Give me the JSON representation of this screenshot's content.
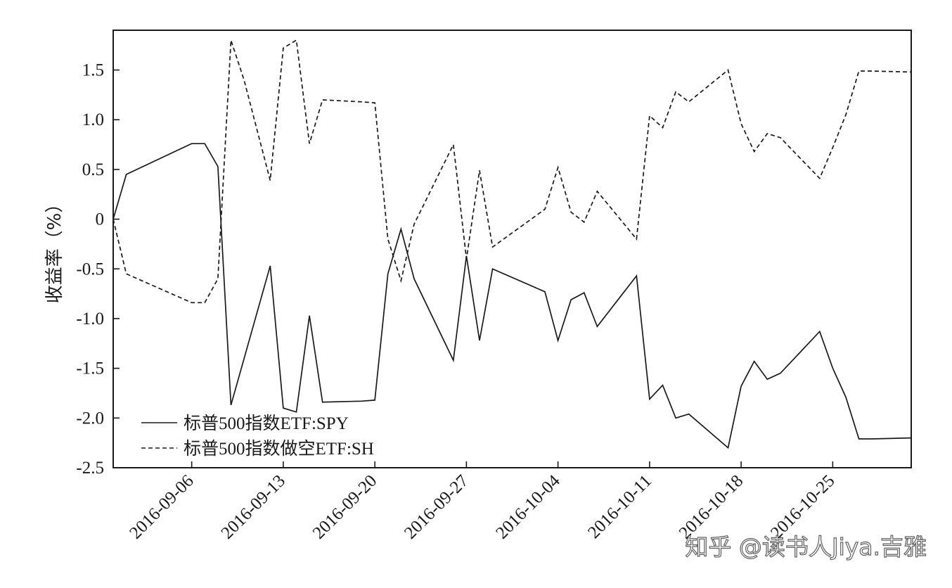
{
  "chart_data": {
    "type": "line",
    "title": "",
    "xlabel": "",
    "ylabel": "收益率（%）",
    "ylim": [
      -2.5,
      1.9
    ],
    "xlim": [
      "2016-08-31",
      "2016-10-31"
    ],
    "yticks": [
      1.5,
      1.0,
      0.5,
      0,
      -0.5,
      -1.0,
      -1.5,
      -2.0,
      -2.5
    ],
    "ytick_labels": [
      "1.5",
      "1.0",
      "0.5",
      "0",
      "-0.5",
      "-1.0",
      "-1.5",
      "-2.0",
      "-2.5"
    ],
    "xticks": [
      "2016-09-06",
      "2016-09-13",
      "2016-09-20",
      "2016-09-27",
      "2016-10-04",
      "2016-10-11",
      "2016-10-18",
      "2016-10-25"
    ],
    "grid": false,
    "legend_position": "bottom-left",
    "series": [
      {
        "name": "标普500指数ETF:SPY",
        "style": "solid",
        "color": "#1a1a1a",
        "points": [
          [
            "2016-08-31",
            0.0
          ],
          [
            "2016-09-01",
            0.45
          ],
          [
            "2016-09-06",
            0.76
          ],
          [
            "2016-09-07",
            0.76
          ],
          [
            "2016-09-08",
            0.53
          ],
          [
            "2016-09-09",
            -1.87
          ],
          [
            "2016-09-12",
            -0.47
          ],
          [
            "2016-09-13",
            -1.9
          ],
          [
            "2016-09-14",
            -1.94
          ],
          [
            "2016-09-15",
            -0.97
          ],
          [
            "2016-09-16",
            -1.84
          ],
          [
            "2016-09-19",
            -1.83
          ],
          [
            "2016-09-20",
            -1.82
          ],
          [
            "2016-09-21",
            -0.55
          ],
          [
            "2016-09-22",
            -0.1
          ],
          [
            "2016-09-23",
            -0.6
          ],
          [
            "2016-09-26",
            -1.42
          ],
          [
            "2016-09-27",
            -0.37
          ],
          [
            "2016-09-28",
            -1.22
          ],
          [
            "2016-09-29",
            -0.5
          ],
          [
            "2016-10-03",
            -0.73
          ],
          [
            "2016-10-04",
            -1.22
          ],
          [
            "2016-10-05",
            -0.81
          ],
          [
            "2016-10-06",
            -0.74
          ],
          [
            "2016-10-07",
            -1.08
          ],
          [
            "2016-10-10",
            -0.57
          ],
          [
            "2016-10-11",
            -1.81
          ],
          [
            "2016-10-12",
            -1.67
          ],
          [
            "2016-10-13",
            -2.0
          ],
          [
            "2016-10-14",
            -1.96
          ],
          [
            "2016-10-17",
            -2.3
          ],
          [
            "2016-10-18",
            -1.68
          ],
          [
            "2016-10-19",
            -1.43
          ],
          [
            "2016-10-20",
            -1.61
          ],
          [
            "2016-10-21",
            -1.55
          ],
          [
            "2016-10-24",
            -1.13
          ],
          [
            "2016-10-25",
            -1.5
          ],
          [
            "2016-10-26",
            -1.79
          ],
          [
            "2016-10-27",
            -2.21
          ],
          [
            "2016-10-28",
            -2.21
          ],
          [
            "2016-10-31",
            -2.2
          ]
        ]
      },
      {
        "name": "标普500指数做空ETF:SH",
        "style": "dashed",
        "color": "#1a1a1a",
        "points": [
          [
            "2016-08-31",
            0.0
          ],
          [
            "2016-09-01",
            -0.55
          ],
          [
            "2016-09-06",
            -0.84
          ],
          [
            "2016-09-07",
            -0.84
          ],
          [
            "2016-09-08",
            -0.6
          ],
          [
            "2016-09-09",
            1.8
          ],
          [
            "2016-09-10",
            1.4
          ],
          [
            "2016-09-12",
            0.39
          ],
          [
            "2016-09-13",
            1.72
          ],
          [
            "2016-09-14",
            1.8
          ],
          [
            "2016-09-15",
            0.76
          ],
          [
            "2016-09-16",
            1.2
          ],
          [
            "2016-09-19",
            1.18
          ],
          [
            "2016-09-20",
            1.17
          ],
          [
            "2016-09-21",
            -0.2
          ],
          [
            "2016-09-22",
            -0.62
          ],
          [
            "2016-09-23",
            -0.05
          ],
          [
            "2016-09-26",
            0.75
          ],
          [
            "2016-09-27",
            -0.4
          ],
          [
            "2016-09-28",
            0.49
          ],
          [
            "2016-09-29",
            -0.28
          ],
          [
            "2016-10-03",
            0.1
          ],
          [
            "2016-10-04",
            0.52
          ],
          [
            "2016-10-05",
            0.07
          ],
          [
            "2016-10-06",
            -0.03
          ],
          [
            "2016-10-07",
            0.28
          ],
          [
            "2016-10-10",
            -0.2
          ],
          [
            "2016-10-11",
            1.04
          ],
          [
            "2016-10-12",
            0.92
          ],
          [
            "2016-10-13",
            1.28
          ],
          [
            "2016-10-14",
            1.18
          ],
          [
            "2016-10-17",
            1.5
          ],
          [
            "2016-10-18",
            0.96
          ],
          [
            "2016-10-19",
            0.68
          ],
          [
            "2016-10-20",
            0.86
          ],
          [
            "2016-10-21",
            0.82
          ],
          [
            "2016-10-24",
            0.41
          ],
          [
            "2016-10-25",
            0.72
          ],
          [
            "2016-10-26",
            1.05
          ],
          [
            "2016-10-27",
            1.49
          ],
          [
            "2016-10-28",
            1.49
          ],
          [
            "2016-10-31",
            1.48
          ]
        ]
      }
    ]
  },
  "watermark": "知乎 @读书人Jiya.吉雅"
}
